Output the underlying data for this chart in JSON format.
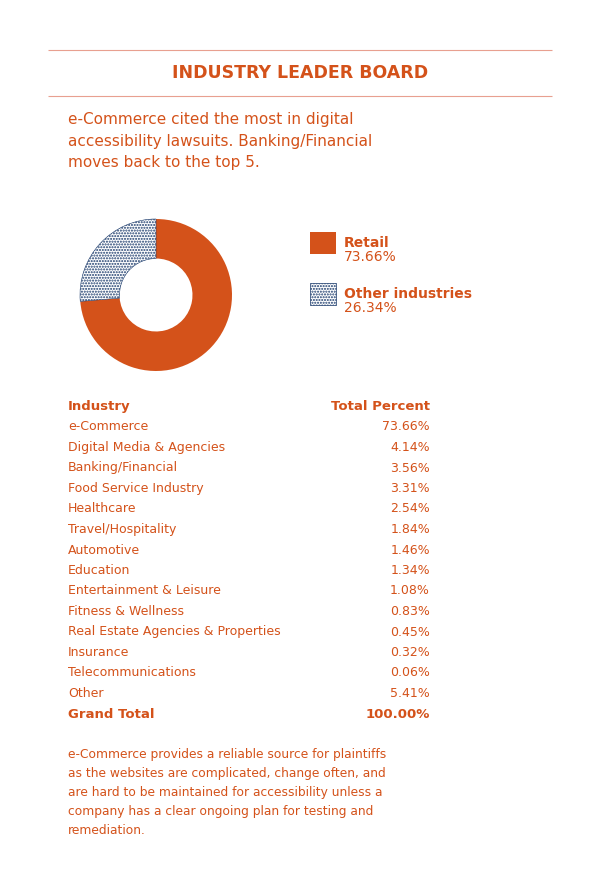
{
  "title": "INDUSTRY LEADER BOARD",
  "subtitle": "e-Commerce cited the most in digital\naccessibility lawsuits. Banking/Financial\nmoves back to the top 5.",
  "donut_values": [
    73.66,
    26.34
  ],
  "donut_labels": [
    "Retail",
    "Other industries"
  ],
  "donut_pcts": [
    "73.66%",
    "26.34%"
  ],
  "donut_orange": "#d4521a",
  "donut_navy": "#1a3a6b",
  "table_headers": [
    "Industry",
    "Total Percent"
  ],
  "table_rows": [
    [
      "e-Commerce",
      "73.66%"
    ],
    [
      "Digital Media & Agencies",
      "4.14%"
    ],
    [
      "Banking/Financial",
      "3.56%"
    ],
    [
      "Food Service Industry",
      "3.31%"
    ],
    [
      "Healthcare",
      "2.54%"
    ],
    [
      "Travel/Hospitality",
      "1.84%"
    ],
    [
      "Automotive",
      "1.46%"
    ],
    [
      "Education",
      "1.34%"
    ],
    [
      "Entertainment & Leisure",
      "1.08%"
    ],
    [
      "Fitness & Wellness",
      "0.83%"
    ],
    [
      "Real Estate Agencies & Properties",
      "0.45%"
    ],
    [
      "Insurance",
      "0.32%"
    ],
    [
      "Telecommunications",
      "0.06%"
    ],
    [
      "Other",
      "5.41%"
    ]
  ],
  "table_footer": [
    "Grand Total",
    "100.00%"
  ],
  "footer_text": "e-Commerce provides a reliable source for plaintiffs\nas the websites are complicated, change often, and\nare hard to be maintained for accessibility unless a\ncompany has a clear ongoing plan for testing and\nremediation.",
  "orange_color": "#d4521a",
  "navy_color": "#1a3a6b",
  "bg_color": "#ffffff",
  "line_color": "#e8a090",
  "fig_width": 6.0,
  "fig_height": 8.69,
  "dpi": 100
}
